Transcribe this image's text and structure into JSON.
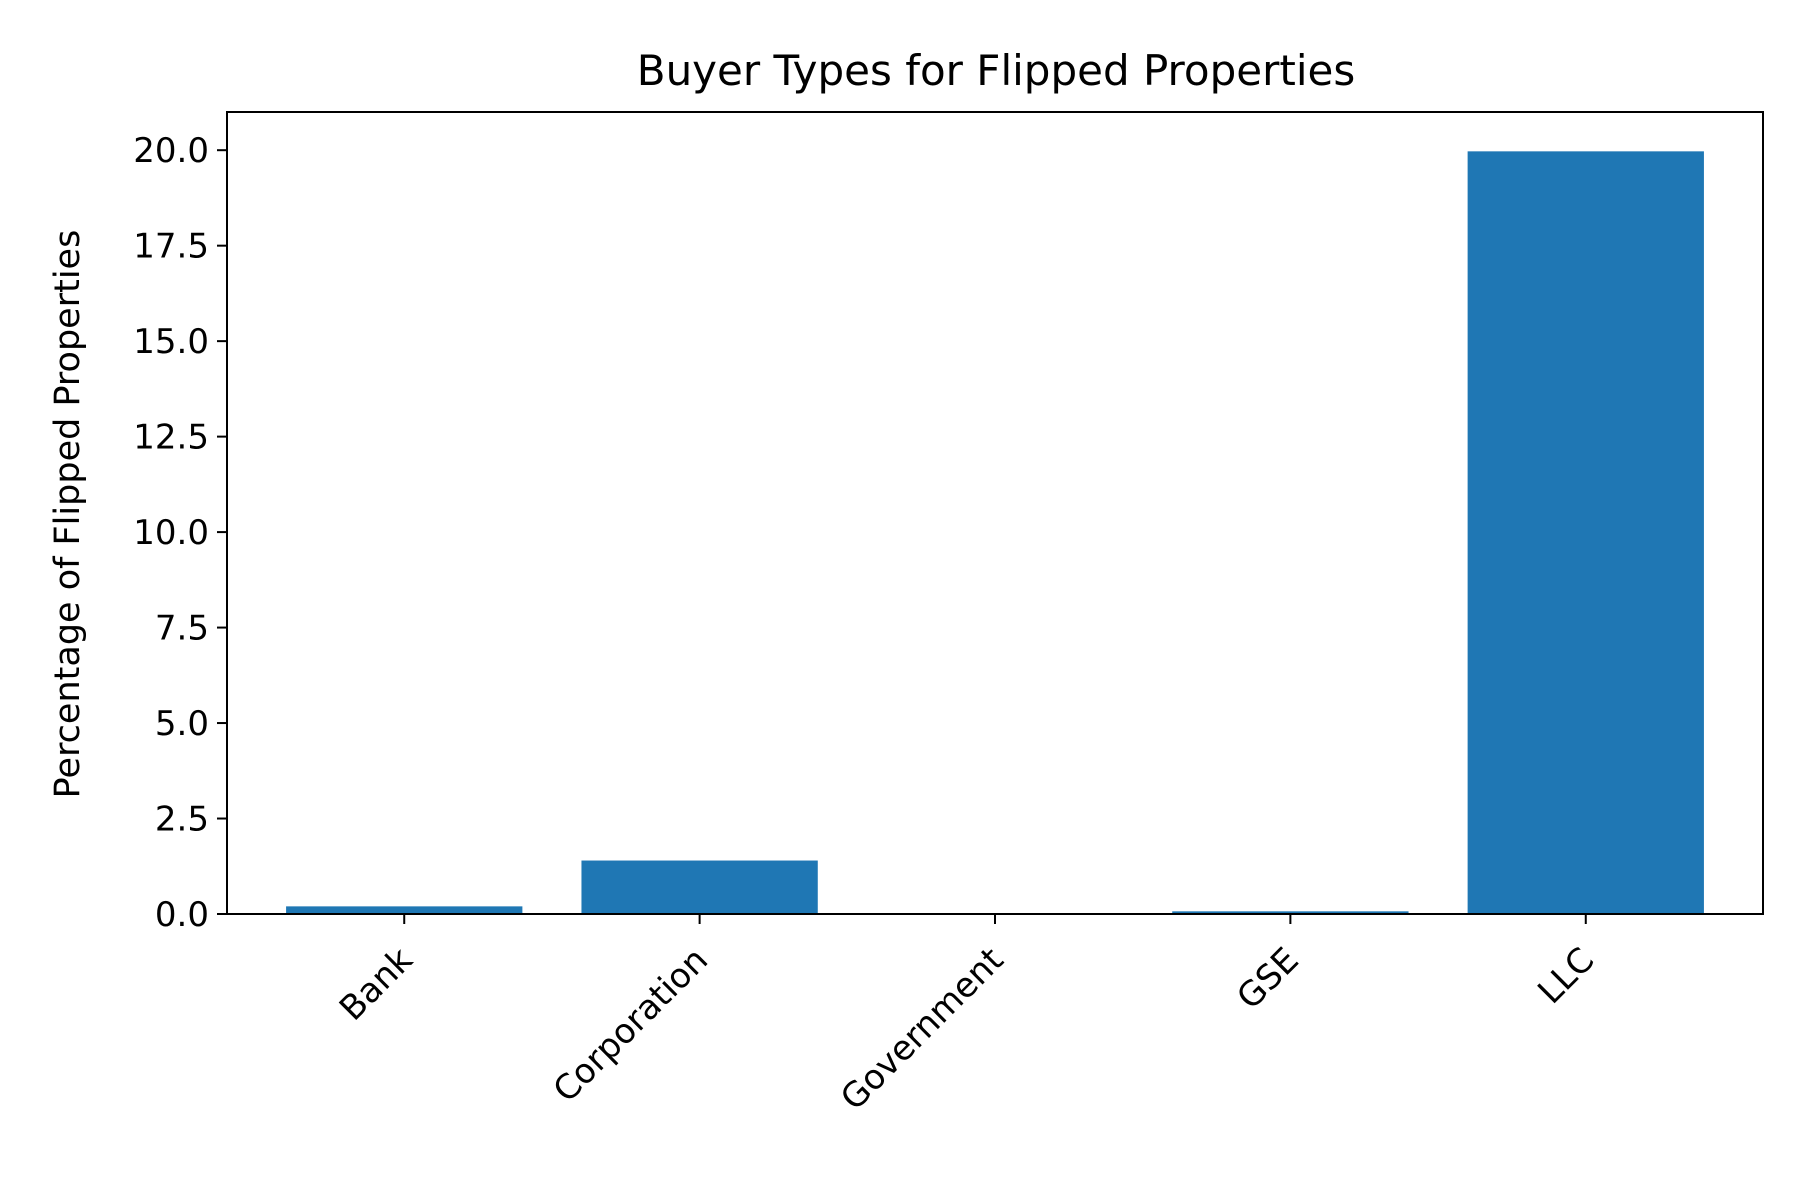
{
  "chart_data": {
    "type": "bar",
    "title": "Buyer Types for Flipped Properties",
    "xlabel": "",
    "ylabel": "Percentage of Flipped Properties",
    "categories": [
      "Bank",
      "Corporation",
      "Government",
      "GSE",
      "LLC"
    ],
    "values": [
      0.2,
      1.4,
      0.0,
      0.07,
      19.97
    ],
    "ylim": [
      0,
      21
    ],
    "yticks": [
      "0.0",
      "2.5",
      "5.0",
      "7.5",
      "10.0",
      "12.5",
      "15.0",
      "17.5",
      "20.0"
    ],
    "ytick_values": [
      0,
      2.5,
      5,
      7.5,
      10,
      12.5,
      15,
      17.5,
      20
    ],
    "grid": false,
    "bar_color": "#1f77b4",
    "xtick_rotation": 45
  }
}
